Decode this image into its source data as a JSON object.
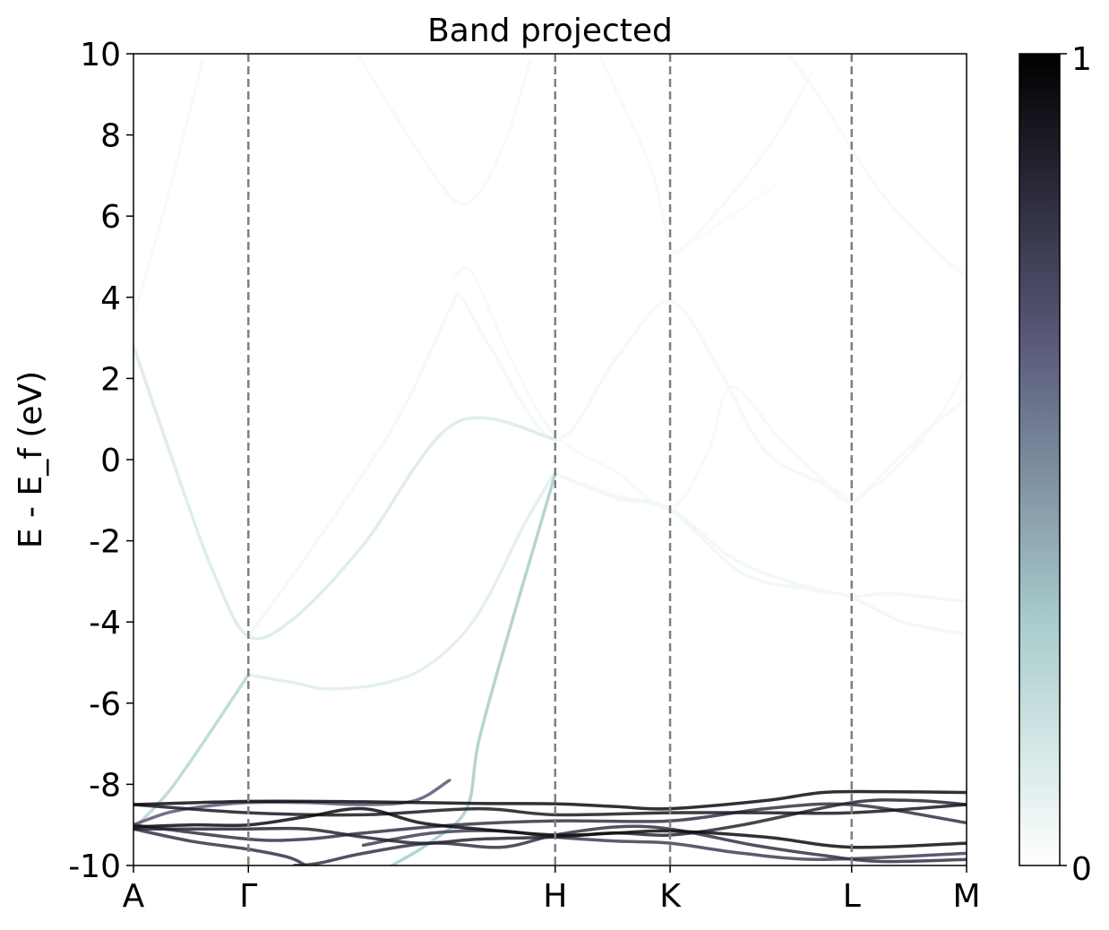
{
  "chart_data": {
    "type": "line",
    "title": "Band projected",
    "xlabel": "",
    "ylabel": "E - E_f (eV)",
    "xlim": [
      0,
      7.25
    ],
    "ylim": [
      -10,
      10
    ],
    "yticks": [
      {
        "value": 10,
        "label": "10"
      },
      {
        "value": 8,
        "label": "8"
      },
      {
        "value": 6,
        "label": "6"
      },
      {
        "value": 4,
        "label": "4"
      },
      {
        "value": 2,
        "label": "2"
      },
      {
        "value": 0,
        "label": "0"
      },
      {
        "value": -2,
        "label": "-2"
      },
      {
        "value": -4,
        "label": "-4"
      },
      {
        "value": -6,
        "label": "-6"
      },
      {
        "value": -8,
        "label": "-8"
      },
      {
        "value": -10,
        "label": "-10"
      }
    ],
    "kpoints": [
      {
        "x": 0.0,
        "label": "A"
      },
      {
        "x": 1.0,
        "label": "Γ"
      },
      {
        "x": 3.67,
        "label": "H"
      },
      {
        "x": 4.67,
        "label": "K"
      },
      {
        "x": 6.25,
        "label": "L"
      },
      {
        "x": 7.25,
        "label": "M"
      }
    ],
    "grid": false,
    "colorbar": {
      "min_label": "0",
      "max_label": "1",
      "colormap": "bone_r"
    },
    "series": [
      {
        "weight": 0.03,
        "points": [
          [
            0.0,
            3.5
          ],
          [
            0.3,
            6.5
          ],
          [
            0.6,
            9.8
          ]
        ]
      },
      {
        "weight": 0.03,
        "points": [
          [
            1.95,
            10
          ],
          [
            2.5,
            7.5
          ],
          [
            2.88,
            6.3
          ],
          [
            3.2,
            7.6
          ],
          [
            3.45,
            9.8
          ]
        ]
      },
      {
        "weight": 0.03,
        "points": [
          [
            4.05,
            10
          ],
          [
            4.5,
            7.2
          ],
          [
            4.67,
            5.3
          ],
          [
            4.85,
            5.4
          ],
          [
            5.5,
            7.6
          ],
          [
            5.9,
            9.5
          ]
        ]
      },
      {
        "weight": 0.03,
        "points": [
          [
            5.7,
            10
          ],
          [
            6.0,
            8.8
          ],
          [
            6.5,
            6.6
          ],
          [
            7.0,
            5.1
          ],
          [
            7.25,
            4.5
          ]
        ]
      },
      {
        "weight": 0.02,
        "points": [
          [
            4.67,
            5.0
          ],
          [
            5.2,
            6.0
          ],
          [
            5.6,
            6.8
          ]
        ]
      },
      {
        "weight": 0.03,
        "points": [
          [
            6.25,
            -1.05
          ],
          [
            6.6,
            -0.3
          ],
          [
            7.0,
            1.0
          ],
          [
            7.25,
            2.3
          ]
        ]
      },
      {
        "weight": 0.04,
        "points": [
          [
            1.0,
            -4.35
          ],
          [
            1.6,
            -2.0
          ],
          [
            2.3,
            1.0
          ],
          [
            2.75,
            3.7
          ],
          [
            2.85,
            4.0
          ],
          [
            3.1,
            2.8
          ],
          [
            3.67,
            0.5
          ],
          [
            4.2,
            2.5
          ],
          [
            4.67,
            3.9
          ],
          [
            5.1,
            2.2
          ],
          [
            5.5,
            0.2
          ],
          [
            6.0,
            -0.6
          ],
          [
            6.25,
            -1.05
          ],
          [
            6.5,
            -0.4
          ],
          [
            6.9,
            0.7
          ],
          [
            7.25,
            1.5
          ]
        ]
      },
      {
        "weight": 0.03,
        "points": [
          [
            2.8,
            4.5
          ],
          [
            2.95,
            4.6
          ],
          [
            3.3,
            2.4
          ],
          [
            3.67,
            0.6
          ],
          [
            4.2,
            -0.3
          ],
          [
            4.67,
            -1.2
          ],
          [
            5.0,
            0.2
          ],
          [
            5.2,
            1.8
          ],
          [
            5.6,
            0.6
          ],
          [
            6.0,
            -0.5
          ],
          [
            6.25,
            -1.0
          ]
        ]
      },
      {
        "weight": 0.05,
        "points": [
          [
            3.67,
            -0.35
          ],
          [
            4.2,
            -0.9
          ],
          [
            4.67,
            -1.2
          ],
          [
            5.2,
            -2.4
          ],
          [
            5.7,
            -3.0
          ],
          [
            6.25,
            -3.35
          ],
          [
            6.6,
            -3.3
          ],
          [
            7.25,
            -3.5
          ]
        ]
      },
      {
        "weight": 0.05,
        "points": [
          [
            3.67,
            -0.35
          ],
          [
            4.2,
            -0.95
          ],
          [
            4.67,
            -1.25
          ],
          [
            5.3,
            -2.8
          ],
          [
            5.9,
            -3.2
          ],
          [
            6.25,
            -3.4
          ],
          [
            6.7,
            -4.0
          ],
          [
            7.25,
            -4.3
          ]
        ]
      },
      {
        "weight": 0.12,
        "points": [
          [
            0.0,
            2.8
          ],
          [
            0.4,
            -0.5
          ],
          [
            0.7,
            -2.8
          ],
          [
            1.0,
            -4.35
          ],
          [
            1.4,
            -3.9
          ],
          [
            2.0,
            -2.1
          ],
          [
            2.8,
            0.9
          ],
          [
            3.67,
            0.5
          ]
        ]
      },
      {
        "weight": 0.1,
        "points": [
          [
            1.0,
            -5.3
          ],
          [
            1.4,
            -5.5
          ],
          [
            1.7,
            -5.65
          ],
          [
            2.2,
            -5.5
          ],
          [
            2.6,
            -5.0
          ],
          [
            3.0,
            -3.8
          ],
          [
            3.4,
            -1.6
          ],
          [
            3.67,
            -0.3
          ]
        ]
      },
      {
        "weight": 0.25,
        "points": [
          [
            0.0,
            -9.1
          ],
          [
            0.3,
            -8.2
          ],
          [
            0.6,
            -7.0
          ],
          [
            1.0,
            -5.3
          ]
        ]
      },
      {
        "weight": 0.3,
        "points": [
          [
            2.25,
            -10
          ],
          [
            2.6,
            -9.4
          ],
          [
            2.9,
            -8.6
          ],
          [
            3.0,
            -7.0
          ],
          [
            3.2,
            -4.9
          ],
          [
            3.5,
            -2.0
          ],
          [
            3.67,
            -0.35
          ]
        ]
      },
      {
        "weight": 0.65,
        "points": [
          [
            0.0,
            -9.0
          ],
          [
            0.3,
            -8.7
          ],
          [
            0.6,
            -8.55
          ],
          [
            1.0,
            -8.45
          ],
          [
            1.5,
            -8.45
          ],
          [
            2.0,
            -8.5
          ],
          [
            2.45,
            -8.4
          ],
          [
            2.75,
            -7.9
          ]
        ]
      },
      {
        "weight": 0.95,
        "points": [
          [
            0.0,
            -8.5
          ],
          [
            1.0,
            -8.42
          ],
          [
            2.0,
            -8.43
          ],
          [
            3.0,
            -8.47
          ],
          [
            3.67,
            -8.48
          ],
          [
            4.2,
            -8.55
          ],
          [
            4.67,
            -8.6
          ],
          [
            5.5,
            -8.4
          ],
          [
            6.0,
            -8.2
          ],
          [
            6.5,
            -8.18
          ],
          [
            7.25,
            -8.2
          ]
        ]
      },
      {
        "weight": 0.9,
        "points": [
          [
            0.0,
            -8.5
          ],
          [
            1.0,
            -8.7
          ],
          [
            2.0,
            -8.75
          ],
          [
            3.0,
            -8.6
          ],
          [
            3.67,
            -8.75
          ],
          [
            4.67,
            -8.7
          ],
          [
            5.5,
            -8.7
          ],
          [
            6.25,
            -8.7
          ],
          [
            7.25,
            -8.5
          ]
        ]
      },
      {
        "weight": 0.8,
        "points": [
          [
            0.0,
            -9.0
          ],
          [
            1.0,
            -9.35
          ],
          [
            1.5,
            -9.35
          ],
          [
            2.0,
            -9.2
          ],
          [
            2.8,
            -9.0
          ],
          [
            3.67,
            -8.9
          ],
          [
            4.67,
            -8.9
          ],
          [
            5.5,
            -8.6
          ],
          [
            6.25,
            -8.5
          ],
          [
            7.25,
            -8.95
          ]
        ]
      },
      {
        "weight": 0.95,
        "points": [
          [
            0.0,
            -9.05
          ],
          [
            0.5,
            -9.0
          ],
          [
            1.0,
            -9.0
          ],
          [
            1.5,
            -8.8
          ],
          [
            2.0,
            -8.6
          ],
          [
            2.5,
            -8.95
          ],
          [
            3.0,
            -9.1
          ],
          [
            3.67,
            -9.25
          ],
          [
            4.2,
            -9.2
          ],
          [
            4.67,
            -9.15
          ],
          [
            5.5,
            -9.3
          ],
          [
            6.25,
            -9.55
          ],
          [
            7.25,
            -9.45
          ]
        ]
      },
      {
        "weight": 0.85,
        "points": [
          [
            0.0,
            -9.1
          ],
          [
            1.0,
            -9.1
          ],
          [
            1.5,
            -9.1
          ],
          [
            2.0,
            -9.3
          ],
          [
            2.5,
            -9.45
          ],
          [
            3.0,
            -9.35
          ],
          [
            3.67,
            -9.3
          ],
          [
            4.2,
            -9.2
          ],
          [
            4.67,
            -9.25
          ],
          [
            5.3,
            -9.0
          ],
          [
            6.25,
            -8.45
          ],
          [
            6.8,
            -8.4
          ],
          [
            7.25,
            -8.5
          ]
        ]
      },
      {
        "weight": 0.8,
        "points": [
          [
            0.0,
            -9.1
          ],
          [
            0.5,
            -9.4
          ],
          [
            1.0,
            -9.6
          ],
          [
            1.35,
            -9.8
          ],
          [
            1.5,
            -10
          ]
        ]
      },
      {
        "weight": 0.8,
        "points": [
          [
            1.4,
            -10
          ],
          [
            1.6,
            -9.95
          ],
          [
            2.0,
            -9.7
          ],
          [
            2.6,
            -9.45
          ],
          [
            3.2,
            -9.55
          ],
          [
            3.67,
            -9.25
          ],
          [
            4.2,
            -9.05
          ],
          [
            4.67,
            -9.1
          ],
          [
            5.4,
            -9.5
          ],
          [
            6.0,
            -9.75
          ],
          [
            6.5,
            -9.9
          ],
          [
            7.25,
            -9.85
          ]
        ]
      },
      {
        "weight": 0.75,
        "points": [
          [
            2.0,
            -9.5
          ],
          [
            2.6,
            -9.2
          ],
          [
            3.2,
            -9.15
          ],
          [
            3.67,
            -9.3
          ],
          [
            4.2,
            -9.4
          ],
          [
            4.67,
            -9.45
          ],
          [
            5.3,
            -9.7
          ],
          [
            6.0,
            -9.85
          ],
          [
            7.25,
            -9.7
          ]
        ]
      }
    ]
  }
}
